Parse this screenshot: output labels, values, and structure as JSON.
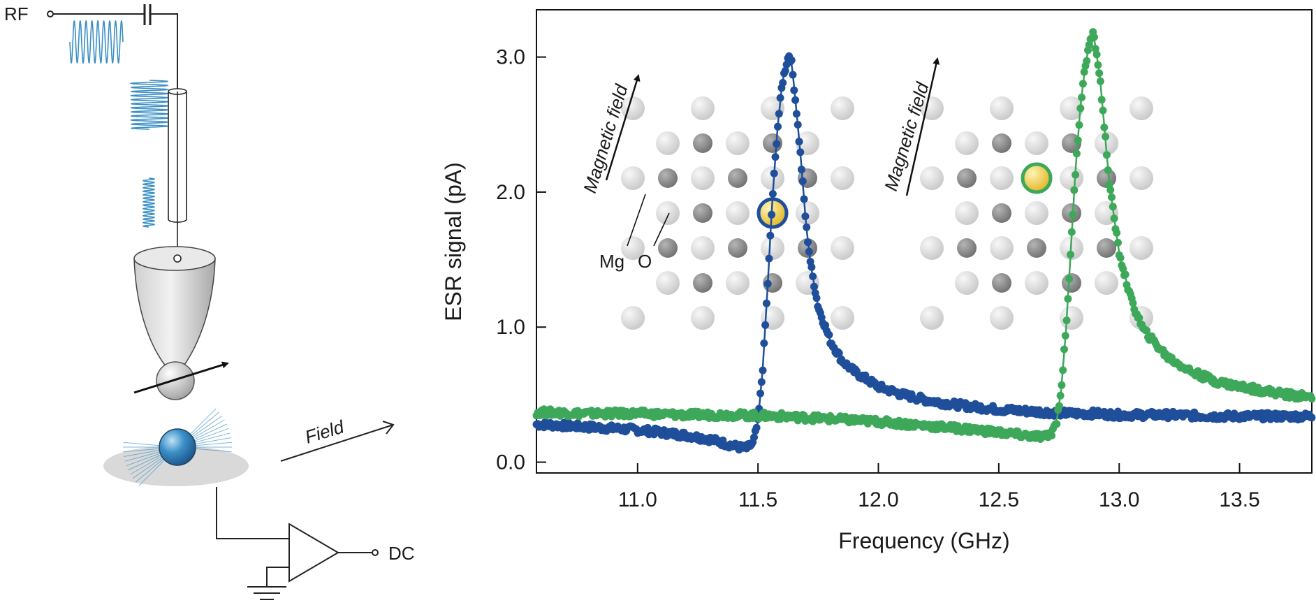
{
  "schematic": {
    "rf_label": "RF",
    "dc_label": "DC",
    "field_label": "Field"
  },
  "inset_left": {
    "field_label": "Magnetic field",
    "mg_label": "Mg",
    "o_label": "O"
  },
  "inset_right": {
    "field_label": "Magnetic field"
  },
  "colors": {
    "blue": "#1f4e9a",
    "green": "#3ea85a",
    "rf_wave": "#3b8fc4",
    "gold": "#f2cc3a"
  },
  "chart_data": {
    "type": "scatter",
    "title": "",
    "xlabel": "Frequency (GHz)",
    "ylabel": "ESR signal (pA)",
    "xlim": [
      10.58,
      13.8
    ],
    "ylim": [
      -0.08,
      3.35
    ],
    "xticks": [
      11.0,
      11.5,
      12.0,
      12.5,
      13.0,
      13.5
    ],
    "xtick_labels": [
      "11.0",
      "11.5",
      "12.0",
      "12.5",
      "13.0",
      "13.5"
    ],
    "yticks": [
      0.0,
      1.0,
      2.0,
      3.0
    ],
    "ytick_labels": [
      "0.0",
      "1.0",
      "2.0",
      "3.0"
    ],
    "grid": false,
    "series": [
      {
        "color": "blue",
        "x": [
          10.6,
          10.7,
          10.8,
          10.9,
          11.0,
          11.1,
          11.2,
          11.3,
          11.4,
          11.45,
          11.48,
          11.5,
          11.52,
          11.54,
          11.56,
          11.58,
          11.6,
          11.62,
          11.63,
          11.64,
          11.66,
          11.68,
          11.7,
          11.72,
          11.75,
          11.8,
          11.85,
          11.9,
          12.0,
          12.1,
          12.2,
          12.3,
          12.4,
          12.5,
          12.6,
          12.7,
          12.8,
          12.9,
          13.0,
          13.2,
          13.4,
          13.6,
          13.8
        ],
        "y": [
          0.28,
          0.27,
          0.26,
          0.25,
          0.24,
          0.22,
          0.2,
          0.17,
          0.12,
          0.1,
          0.14,
          0.3,
          0.7,
          1.3,
          1.95,
          2.45,
          2.8,
          2.97,
          3.02,
          2.95,
          2.6,
          2.2,
          1.75,
          1.45,
          1.15,
          0.9,
          0.75,
          0.67,
          0.56,
          0.5,
          0.46,
          0.43,
          0.41,
          0.39,
          0.38,
          0.37,
          0.36,
          0.36,
          0.35,
          0.35,
          0.34,
          0.34,
          0.34
        ]
      },
      {
        "color": "green",
        "x": [
          10.6,
          10.8,
          11.0,
          11.2,
          11.4,
          11.6,
          11.8,
          12.0,
          12.2,
          12.4,
          12.5,
          12.6,
          12.65,
          12.7,
          12.72,
          12.74,
          12.76,
          12.78,
          12.8,
          12.82,
          12.84,
          12.86,
          12.88,
          12.89,
          12.9,
          12.92,
          12.94,
          12.96,
          13.0,
          13.05,
          13.1,
          13.2,
          13.3,
          13.4,
          13.5,
          13.6,
          13.7,
          13.8
        ],
        "y": [
          0.37,
          0.36,
          0.36,
          0.35,
          0.35,
          0.34,
          0.32,
          0.3,
          0.27,
          0.24,
          0.22,
          0.2,
          0.19,
          0.19,
          0.22,
          0.3,
          0.55,
          1.0,
          1.6,
          2.2,
          2.65,
          2.95,
          3.12,
          3.17,
          3.1,
          2.85,
          2.45,
          2.05,
          1.55,
          1.2,
          0.98,
          0.78,
          0.67,
          0.6,
          0.56,
          0.53,
          0.5,
          0.48
        ]
      }
    ]
  }
}
